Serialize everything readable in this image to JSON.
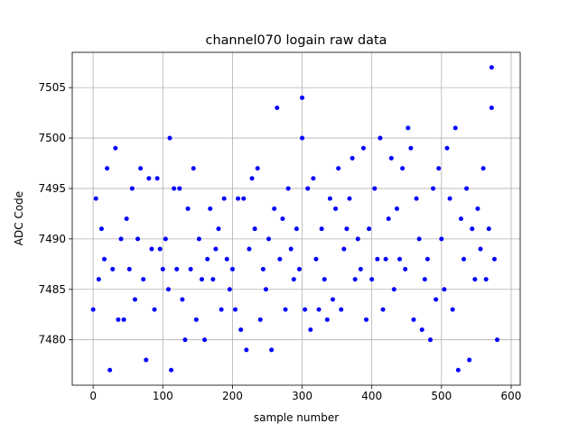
{
  "chart_data": {
    "type": "scatter",
    "title": "channel070 logain raw data",
    "x_label": "sample number",
    "y_label": "ADC Code",
    "xlim": [
      -30,
      613
    ],
    "ylim": [
      7475.5,
      7508.5
    ],
    "xticks": [
      0,
      100,
      200,
      300,
      400,
      500,
      600
    ],
    "yticks": [
      7480,
      7485,
      7490,
      7495,
      7500,
      7505
    ],
    "grid": true,
    "color": "#0000ff",
    "x": [
      0,
      4,
      8,
      12,
      16,
      20,
      24,
      28,
      32,
      36,
      40,
      44,
      48,
      52,
      56,
      60,
      64,
      68,
      72,
      76,
      80,
      84,
      88,
      92,
      96,
      100,
      104,
      108,
      110,
      112,
      116,
      120,
      124,
      128,
      132,
      136,
      140,
      144,
      148,
      152,
      156,
      160,
      164,
      168,
      172,
      176,
      180,
      184,
      188,
      192,
      196,
      200,
      204,
      208,
      212,
      216,
      220,
      224,
      228,
      232,
      236,
      240,
      244,
      248,
      252,
      256,
      260,
      264,
      268,
      272,
      276,
      280,
      284,
      288,
      292,
      296,
      300,
      300,
      304,
      308,
      312,
      316,
      320,
      324,
      328,
      332,
      336,
      340,
      344,
      348,
      352,
      356,
      360,
      364,
      368,
      372,
      376,
      380,
      384,
      388,
      392,
      396,
      400,
      404,
      408,
      412,
      416,
      420,
      424,
      428,
      432,
      436,
      440,
      444,
      448,
      452,
      456,
      460,
      464,
      468,
      472,
      476,
      480,
      484,
      488,
      492,
      496,
      500,
      504,
      508,
      512,
      516,
      520,
      524,
      528,
      532,
      536,
      540,
      544,
      548,
      552,
      556,
      560,
      564,
      568,
      572,
      572,
      576,
      580
    ],
    "values": [
      7483,
      7494,
      7486,
      7491,
      7488,
      7497,
      7477,
      7487,
      7499,
      7482,
      7490,
      7482,
      7492,
      7487,
      7495,
      7484,
      7490,
      7497,
      7486,
      7478,
      7496,
      7489,
      7483,
      7496,
      7489,
      7487,
      7490,
      7485,
      7500,
      7477,
      7495,
      7487,
      7495,
      7484,
      7480,
      7493,
      7487,
      7497,
      7482,
      7490,
      7486,
      7480,
      7488,
      7493,
      7486,
      7489,
      7491,
      7483,
      7494,
      7488,
      7485,
      7487,
      7483,
      7494,
      7481,
      7494,
      7479,
      7489,
      7496,
      7491,
      7497,
      7482,
      7487,
      7485,
      7490,
      7479,
      7493,
      7503,
      7488,
      7492,
      7483,
      7495,
      7489,
      7486,
      7491,
      7487,
      7504,
      7500,
      7483,
      7495,
      7481,
      7496,
      7488,
      7483,
      7491,
      7486,
      7482,
      7494,
      7484,
      7493,
      7497,
      7483,
      7489,
      7491,
      7494,
      7498,
      7486,
      7490,
      7487,
      7499,
      7482,
      7491,
      7486,
      7495,
      7488,
      7500,
      7483,
      7488,
      7492,
      7498,
      7485,
      7493,
      7488,
      7497,
      7487,
      7501,
      7499,
      7482,
      7494,
      7490,
      7481,
      7486,
      7488,
      7480,
      7495,
      7484,
      7497,
      7490,
      7485,
      7499,
      7494,
      7483,
      7501,
      7477,
      7492,
      7488,
      7495,
      7478,
      7491,
      7486,
      7493,
      7489,
      7497,
      7486,
      7491,
      7507,
      7503,
      7488,
      7480
    ]
  }
}
